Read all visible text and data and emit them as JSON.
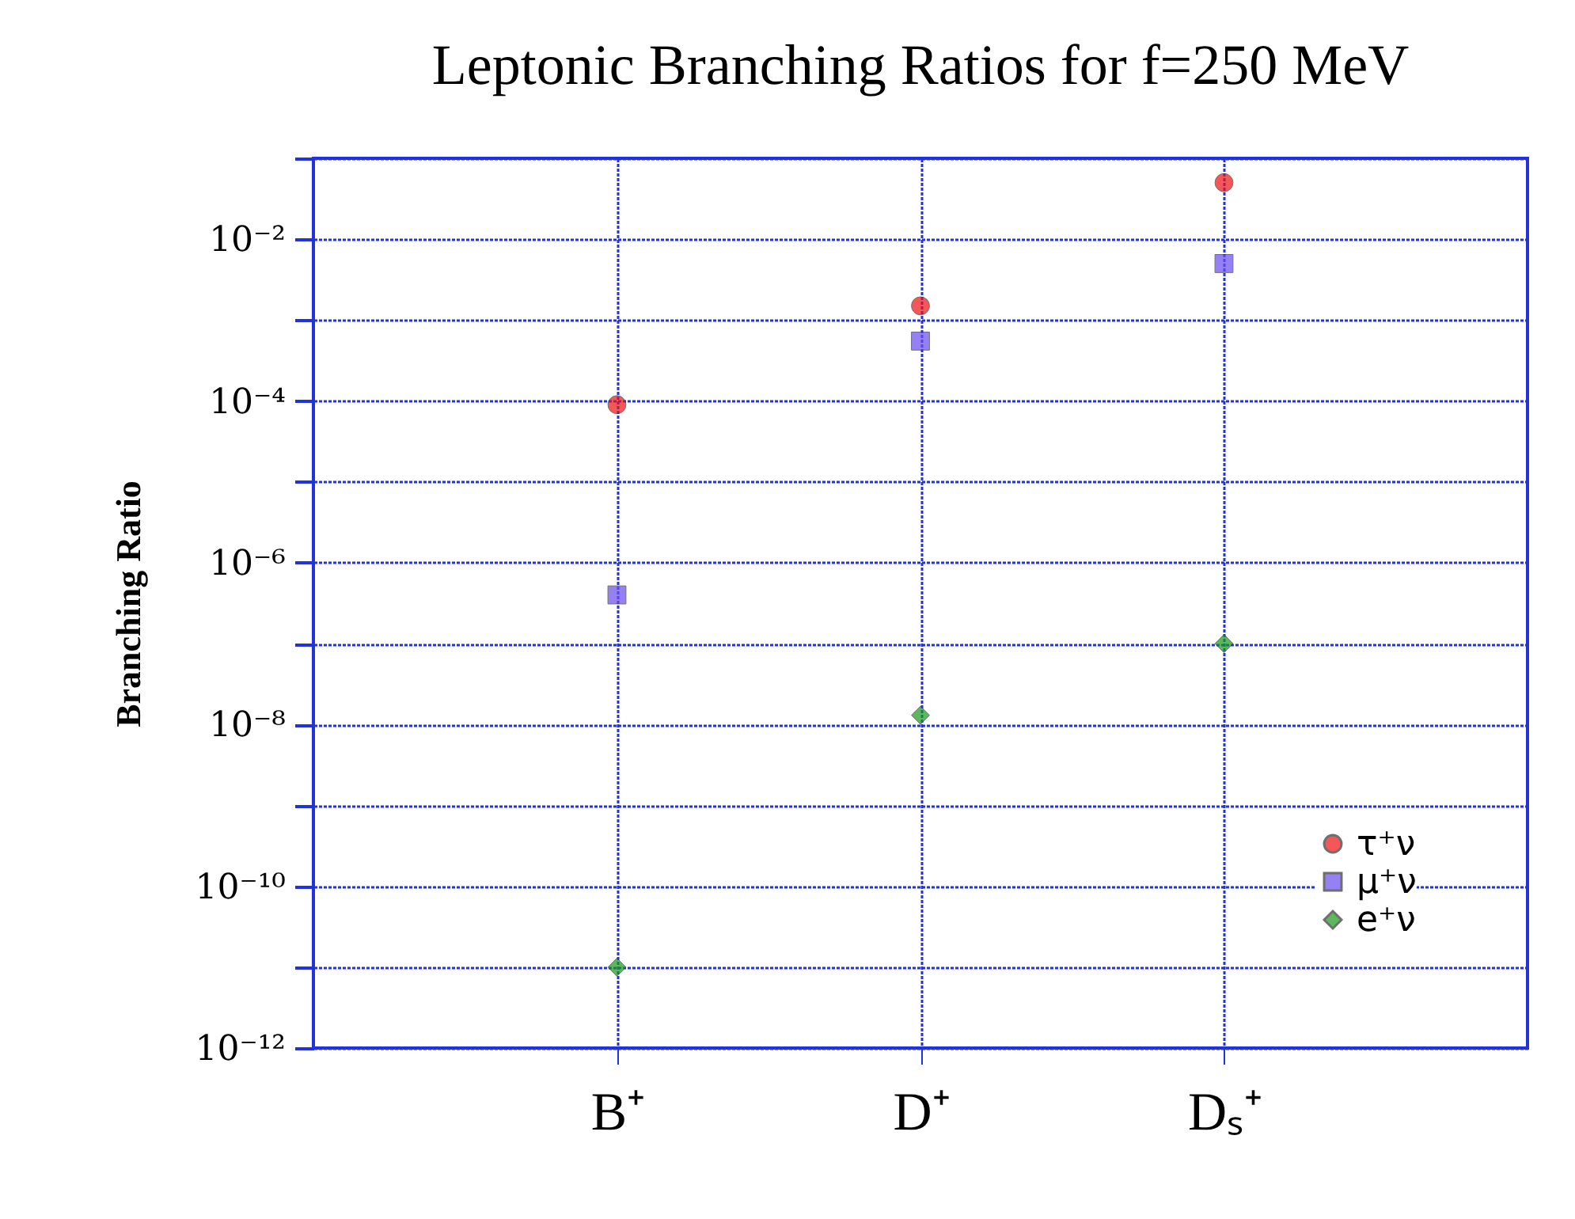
{
  "chart_data": {
    "type": "scatter",
    "title": "Leptonic Branching Ratios for f=250 MeV",
    "ylabel": "Branching Ratio",
    "categories": [
      "B⁺",
      "D⁺",
      "Dₛ⁺"
    ],
    "series": [
      {
        "name": "τ⁺ν",
        "color": "#ee1111",
        "marker": "circle",
        "values": [
          9e-05,
          0.0015,
          0.05
        ]
      },
      {
        "name": "μ⁺ν",
        "color": "#6a4cf0",
        "marker": "square",
        "values": [
          4e-07,
          0.00055,
          0.005
        ]
      },
      {
        "name": "e⁺ν",
        "color": "#1a9a1a",
        "marker": "diamond",
        "values": [
          1e-11,
          1.3e-08,
          1e-07
        ]
      }
    ],
    "log": "y",
    "ylim": [
      1e-12,
      0.1
    ],
    "yticks": [
      {
        "value": 1e-12,
        "label": "10⁻¹²"
      },
      {
        "value": 1e-11,
        "label": null
      },
      {
        "value": 1e-10,
        "label": "10⁻¹⁰"
      },
      {
        "value": 1e-09,
        "label": null
      },
      {
        "value": 1e-08,
        "label": "10⁻⁸"
      },
      {
        "value": 1e-07,
        "label": null
      },
      {
        "value": 1e-06,
        "label": "10⁻⁶"
      },
      {
        "value": 1e-05,
        "label": null
      },
      {
        "value": 0.0001,
        "label": "10⁻⁴"
      },
      {
        "value": 0.001,
        "label": null
      },
      {
        "value": 0.01,
        "label": "10⁻²"
      },
      {
        "value": 0.1,
        "label": null
      }
    ],
    "grid": true,
    "legend": "bottom right"
  }
}
